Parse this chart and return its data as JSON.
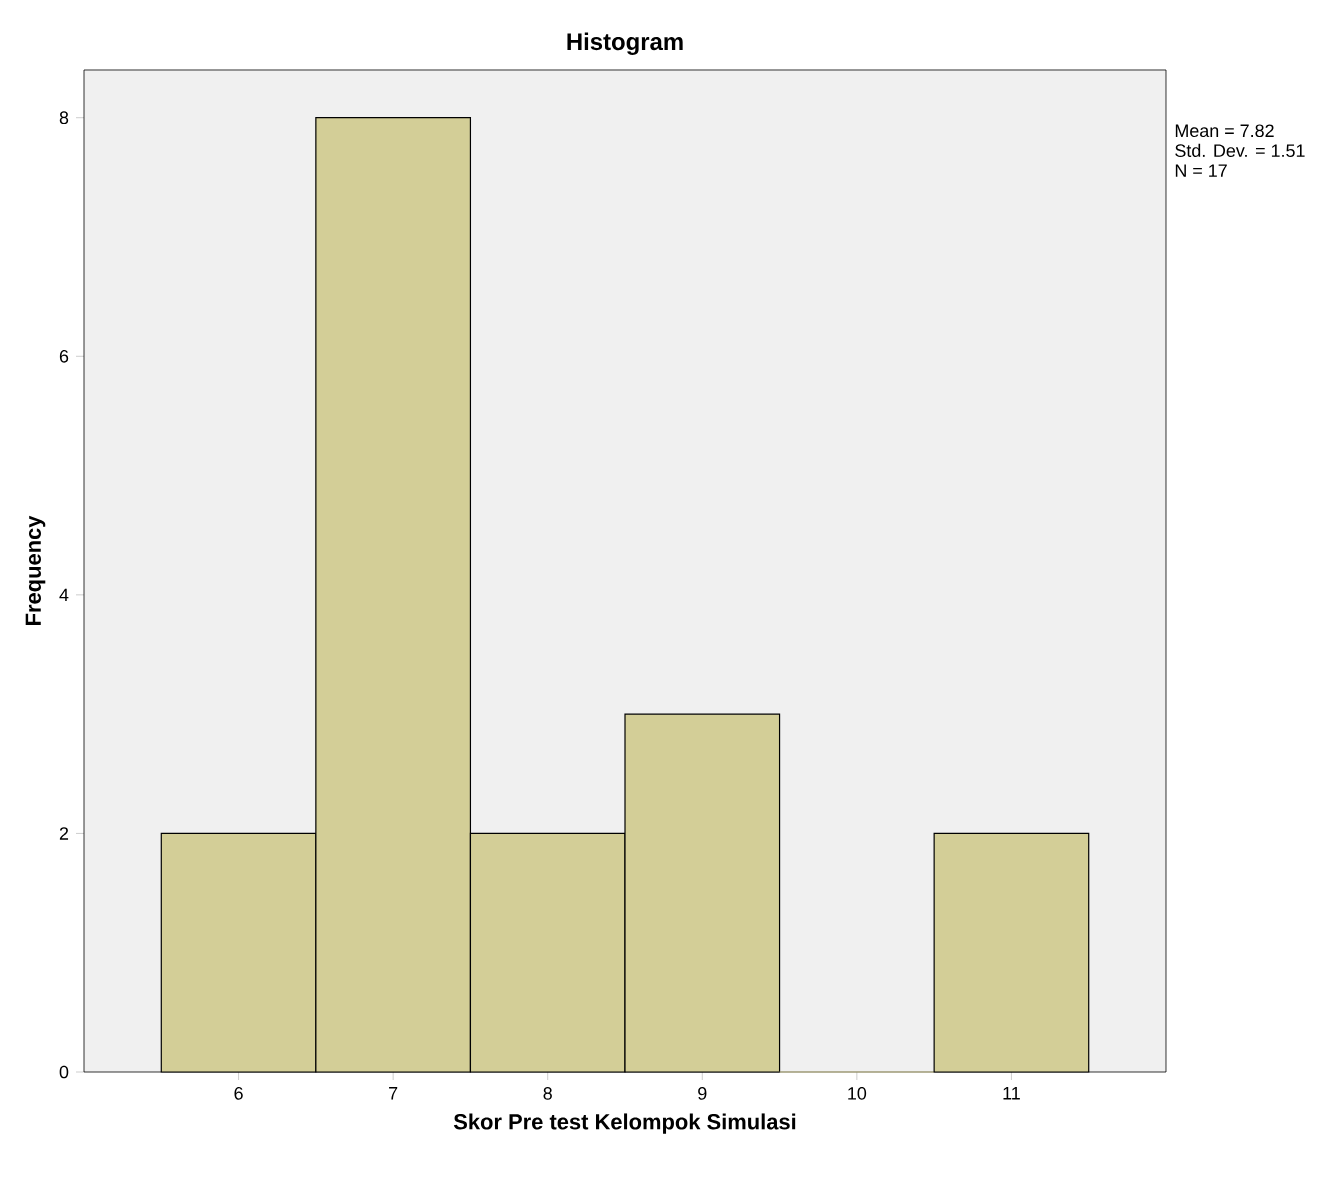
{
  "chart_data": {
    "type": "histogram",
    "title": "Histogram",
    "xlabel": "Skor Pre test Kelompok Simulasi",
    "ylabel": "Frequency",
    "bins": [
      5.5,
      6.5,
      7.5,
      8.5,
      9.5,
      10.5,
      11.5
    ],
    "values": [
      2,
      8,
      2,
      3,
      0,
      2
    ],
    "color": "#d3ce97",
    "xlim": [
      5,
      12
    ],
    "ylim": [
      0,
      8.4
    ],
    "xticks": [
      6,
      7,
      8,
      9,
      10,
      11
    ],
    "yticks": [
      0,
      2,
      4,
      6,
      8
    ],
    "annotations": [
      "Mean = 7.82",
      "Std. Dev. = 1.51",
      "N = 17"
    ]
  }
}
